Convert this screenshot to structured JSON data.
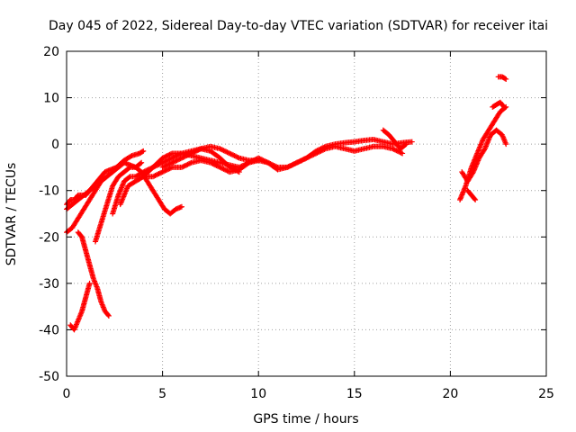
{
  "chart_data": {
    "type": "scatter",
    "title": "Day 045 of 2022, Sidereal Day-to-day VTEC variation (SDTVAR) for receiver itai",
    "xlabel": "GPS time / hours",
    "ylabel": "SDTVAR / TECUs",
    "xlim": [
      0,
      25
    ],
    "ylim": [
      -50,
      20
    ],
    "xticks": [
      0,
      5,
      10,
      15,
      20,
      25
    ],
    "yticks": [
      -50,
      -40,
      -30,
      -20,
      -10,
      0,
      10,
      20
    ],
    "grid": true,
    "marker": "+",
    "color": "#ff0000",
    "series": [
      {
        "x": [
          0.0,
          0.2,
          0.4,
          0.6,
          0.8,
          1.0,
          1.2,
          1.4,
          1.6,
          1.8,
          2.0,
          2.3,
          2.6,
          3.0,
          3.4,
          3.8,
          4.0
        ],
        "y": [
          -13,
          -12,
          -12,
          -11,
          -11,
          -11,
          -10,
          -9,
          -8,
          -7,
          -6,
          -5.5,
          -5,
          -3.5,
          -2.5,
          -2,
          -1.5
        ]
      },
      {
        "x": [
          0.0,
          0.3,
          0.6,
          0.9,
          1.2,
          1.5,
          1.8,
          2.1,
          2.4,
          2.7,
          3.0,
          3.3,
          3.6,
          3.9,
          4.2,
          4.5,
          4.8,
          5.1,
          5.4,
          5.7,
          6.0
        ],
        "y": [
          -19,
          -18,
          -16,
          -14,
          -12,
          -10,
          -8,
          -7,
          -6,
          -5,
          -4,
          -4.5,
          -5,
          -6,
          -8,
          -10,
          -12,
          -14,
          -15,
          -14,
          -13.5
        ]
      },
      {
        "x": [
          0.0,
          0.3,
          0.6,
          0.9,
          1.2,
          1.5
        ],
        "y": [
          -14,
          -13,
          -12,
          -11,
          -10,
          -9
        ]
      },
      {
        "x": [
          0.6,
          0.8,
          1.0,
          1.2,
          1.4,
          1.6,
          1.8,
          2.0,
          2.2
        ],
        "y": [
          -19,
          -20,
          -23,
          -26,
          -29,
          -31,
          -34,
          -36,
          -37
        ]
      },
      {
        "x": [
          0.2,
          0.4,
          0.6,
          0.8,
          1.0,
          1.2
        ],
        "y": [
          -39,
          -40,
          -38,
          -36,
          -33,
          -30
        ]
      },
      {
        "x": [
          1.5,
          1.8,
          2.1,
          2.4,
          2.7,
          3.0,
          3.3,
          3.6,
          3.9
        ],
        "y": [
          -21,
          -17,
          -13,
          -9,
          -7,
          -6,
          -5,
          -5,
          -4
        ]
      },
      {
        "x": [
          2.4,
          2.7,
          3.0,
          3.3,
          3.6,
          4.0,
          4.5,
          5.0,
          5.5,
          6.0,
          6.5,
          7.0,
          7.5,
          8.0,
          8.5,
          9.0,
          9.5,
          10.0,
          10.5,
          11.0,
          11.5,
          12.0,
          12.5,
          13.0,
          13.5,
          14.0,
          14.5,
          15.0,
          15.5,
          16.0,
          16.5,
          17.0,
          17.5,
          18.0
        ],
        "y": [
          -15,
          -11,
          -8,
          -7,
          -7,
          -6,
          -5,
          -3,
          -2,
          -2,
          -2.5,
          -3,
          -3.5,
          -4,
          -4.5,
          -5,
          -4,
          -3,
          -4,
          -5.5,
          -5,
          -4,
          -3,
          -1.5,
          -0.5,
          0,
          0.3,
          0.5,
          0.8,
          1,
          0.5,
          0,
          0.3,
          0.5
        ]
      },
      {
        "x": [
          2.8,
          3.2,
          3.6,
          4.0,
          4.5,
          5.0,
          5.5,
          6.0,
          6.5,
          7.0,
          7.5,
          8.0,
          8.5,
          9.0,
          9.5,
          10.0,
          10.5,
          11.0,
          11.5,
          12.0,
          12.5,
          13.0,
          13.5,
          14.0,
          14.5,
          15.0,
          15.5,
          16.0,
          16.5,
          17.0,
          17.5
        ],
        "y": [
          -13,
          -9,
          -8,
          -7,
          -7,
          -6,
          -5,
          -5,
          -4,
          -3.5,
          -4,
          -5,
          -6,
          -5.5,
          -4,
          -3.5,
          -4,
          -5,
          -5,
          -4,
          -3,
          -2,
          -1,
          -0.5,
          -1,
          -1.5,
          -1,
          -0.5,
          -0.5,
          -1,
          -2
        ]
      },
      {
        "x": [
          4.0,
          4.5,
          5.0,
          5.5,
          6.0,
          6.5,
          7.0,
          7.5,
          8.0,
          8.5,
          9.0
        ],
        "y": [
          -7,
          -5,
          -4,
          -3,
          -2,
          -1.5,
          -1,
          -1.5,
          -3,
          -5,
          -6
        ]
      },
      {
        "x": [
          5.0,
          5.5,
          6.0,
          6.5,
          7.0,
          7.5,
          8.0,
          8.5,
          9.0,
          9.5,
          10.0
        ],
        "y": [
          -5,
          -4,
          -3,
          -2,
          -1,
          -0.5,
          -1,
          -2,
          -3,
          -3.5,
          -3.5
        ]
      },
      {
        "x": [
          16.5,
          16.8,
          17.1,
          17.4,
          17.7
        ],
        "y": [
          3,
          2,
          0.5,
          -1,
          0
        ]
      },
      {
        "x": [
          20.5,
          20.8,
          21.1,
          21.4,
          21.7,
          22.0,
          22.3,
          22.6,
          22.9
        ],
        "y": [
          -12,
          -9,
          -5,
          -2,
          1,
          3,
          5,
          7,
          8
        ]
      },
      {
        "x": [
          20.6,
          20.9,
          21.2,
          21.5,
          21.8,
          22.1,
          22.4,
          22.7,
          22.9
        ],
        "y": [
          -6,
          -8,
          -6,
          -3,
          -1,
          2,
          3,
          2,
          0
        ]
      },
      {
        "x": [
          20.9,
          21.1,
          21.3
        ],
        "y": [
          -10,
          -11,
          -12
        ]
      },
      {
        "x": [
          22.5,
          22.7,
          22.9
        ],
        "y": [
          14.5,
          14.5,
          14
        ]
      },
      {
        "x": [
          22.2,
          22.4,
          22.6,
          22.8
        ],
        "y": [
          8,
          8.5,
          9,
          8
        ]
      }
    ]
  }
}
